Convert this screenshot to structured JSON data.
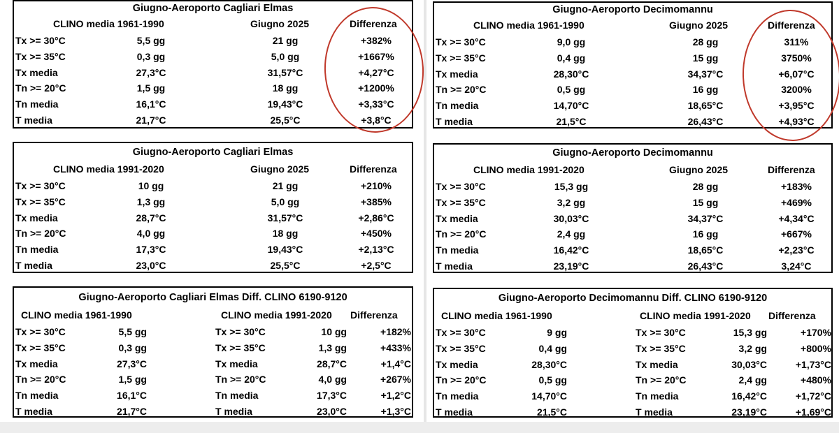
{
  "tables": [
    {
      "title": "Giugno-Aeroporto Cagliari Elmas",
      "headers": [
        "CLINO media 1961-1990",
        "Giugno 2025",
        "Differenza"
      ],
      "rows": [
        [
          "Tx >= 30°C",
          "5,5 gg",
          "21 gg",
          "+382%"
        ],
        [
          "Tx >= 35°C",
          "0,3 gg",
          "5,0 gg",
          "+1667%"
        ],
        [
          "Tx media",
          "27,3°C",
          "31,57°C",
          "+4,27°C"
        ],
        [
          "Tn >= 20°C",
          "1,5 gg",
          "18 gg",
          "+1200%"
        ],
        [
          "Tn media",
          "16,1°C",
          "19,43°C",
          "+3,33°C"
        ],
        [
          "T media",
          "21,7°C",
          "25,5°C",
          "+3,8°C"
        ]
      ]
    },
    {
      "title": "Giugno-Aeroporto Decimomannu",
      "headers": [
        "CLINO media 1961-1990",
        "Giugno 2025",
        "Differenza"
      ],
      "rows": [
        [
          "Tx >= 30°C",
          "9,0 gg",
          "28 gg",
          "311%"
        ],
        [
          "Tx >= 35°C",
          "0,4 gg",
          "15 gg",
          "3750%"
        ],
        [
          "Tx media",
          "28,30°C",
          "34,37°C",
          "+6,07°C"
        ],
        [
          "Tn >= 20°C",
          "0,5 gg",
          "16 gg",
          "3200%"
        ],
        [
          "Tn media",
          "14,70°C",
          "18,65°C",
          "+3,95°C"
        ],
        [
          "T media",
          "21,5°C",
          "26,43°C",
          "+4,93°C"
        ]
      ]
    },
    {
      "title": "Giugno-Aeroporto Cagliari Elmas",
      "headers": [
        "CLINO media 1991-2020",
        "Giugno 2025",
        "Differenza"
      ],
      "rows": [
        [
          "Tx >= 30°C",
          "10 gg",
          "21 gg",
          "+210%"
        ],
        [
          "Tx >= 35°C",
          "1,3 gg",
          "5,0 gg",
          "+385%"
        ],
        [
          "Tx media",
          "28,7°C",
          "31,57°C",
          "+2,86°C"
        ],
        [
          "Tn >= 20°C",
          "4,0 gg",
          "18 gg",
          "+450%"
        ],
        [
          "Tn media",
          "17,3°C",
          "19,43°C",
          "+2,13°C"
        ],
        [
          "T media",
          "23,0°C",
          "25,5°C",
          "+2,5°C"
        ]
      ]
    },
    {
      "title": "Giugno-Aeroporto Decimomannu",
      "headers": [
        "CLINO media 1991-2020",
        "Giugno 2025",
        "Differenza"
      ],
      "rows": [
        [
          "Tx >= 30°C",
          "15,3 gg",
          "28 gg",
          "+183%"
        ],
        [
          "Tx >= 35°C",
          "3,2 gg",
          "15 gg",
          "+469%"
        ],
        [
          "Tx media",
          "30,03°C",
          "34,37°C",
          "+4,34°C"
        ],
        [
          "Tn >= 20°C",
          "2,4 gg",
          "16 gg",
          "+667%"
        ],
        [
          "Tn media",
          "16,42°C",
          "18,65°C",
          "+2,23°C"
        ],
        [
          "T media",
          "23,19°C",
          "26,43°C",
          "3,24°C"
        ]
      ]
    },
    {
      "title": "Giugno-Aeroporto Cagliari Elmas Diff. CLINO 6190-9120",
      "headers": [
        "CLINO media 1961-1990",
        "CLINO media 1991-2020",
        "Differenza"
      ],
      "rows": [
        [
          "Tx >= 30°C",
          "5,5 gg",
          "Tx >= 30°C",
          "10 gg",
          "+182%"
        ],
        [
          "Tx >= 35°C",
          "0,3 gg",
          "Tx >= 35°C",
          "1,3 gg",
          "+433%"
        ],
        [
          "Tx media",
          "27,3°C",
          "Tx media",
          "28,7°C",
          "+1,4°C"
        ],
        [
          "Tn >= 20°C",
          "1,5 gg",
          "Tn >= 20°C",
          "4,0 gg",
          "+267%"
        ],
        [
          "Tn media",
          "16,1°C",
          "Tn media",
          "17,3°C",
          "+1,2°C"
        ],
        [
          "T media",
          "21,7°C",
          "T media",
          "23,0°C",
          "+1,3°C"
        ]
      ]
    },
    {
      "title": "Giugno-Aeroporto Decimomannu Diff. CLINO 6190-9120",
      "headers": [
        "CLINO media 1961-1990",
        "CLINO media 1991-2020",
        "Differenza"
      ],
      "rows": [
        [
          "Tx >= 30°C",
          "9 gg",
          "Tx >= 30°C",
          "15,3 gg",
          "+170%"
        ],
        [
          "Tx >= 35°C",
          "0,4 gg",
          "Tx >= 35°C",
          "3,2 gg",
          "+800%"
        ],
        [
          "Tx media",
          "28,30°C",
          "Tx media",
          "30,03°C",
          "+1,73°C"
        ],
        [
          "Tn >= 20°C",
          "0,5 gg",
          "Tn >= 20°C",
          "2,4 gg",
          "+480%"
        ],
        [
          "Tn media",
          "14,70°C",
          "Tn media",
          "16,42°C",
          "+1,72°C"
        ],
        [
          "T media",
          "21,5°C",
          "T media",
          "23,19°C",
          "+1,69°C"
        ]
      ]
    }
  ],
  "annotation_color": "#c0392b"
}
